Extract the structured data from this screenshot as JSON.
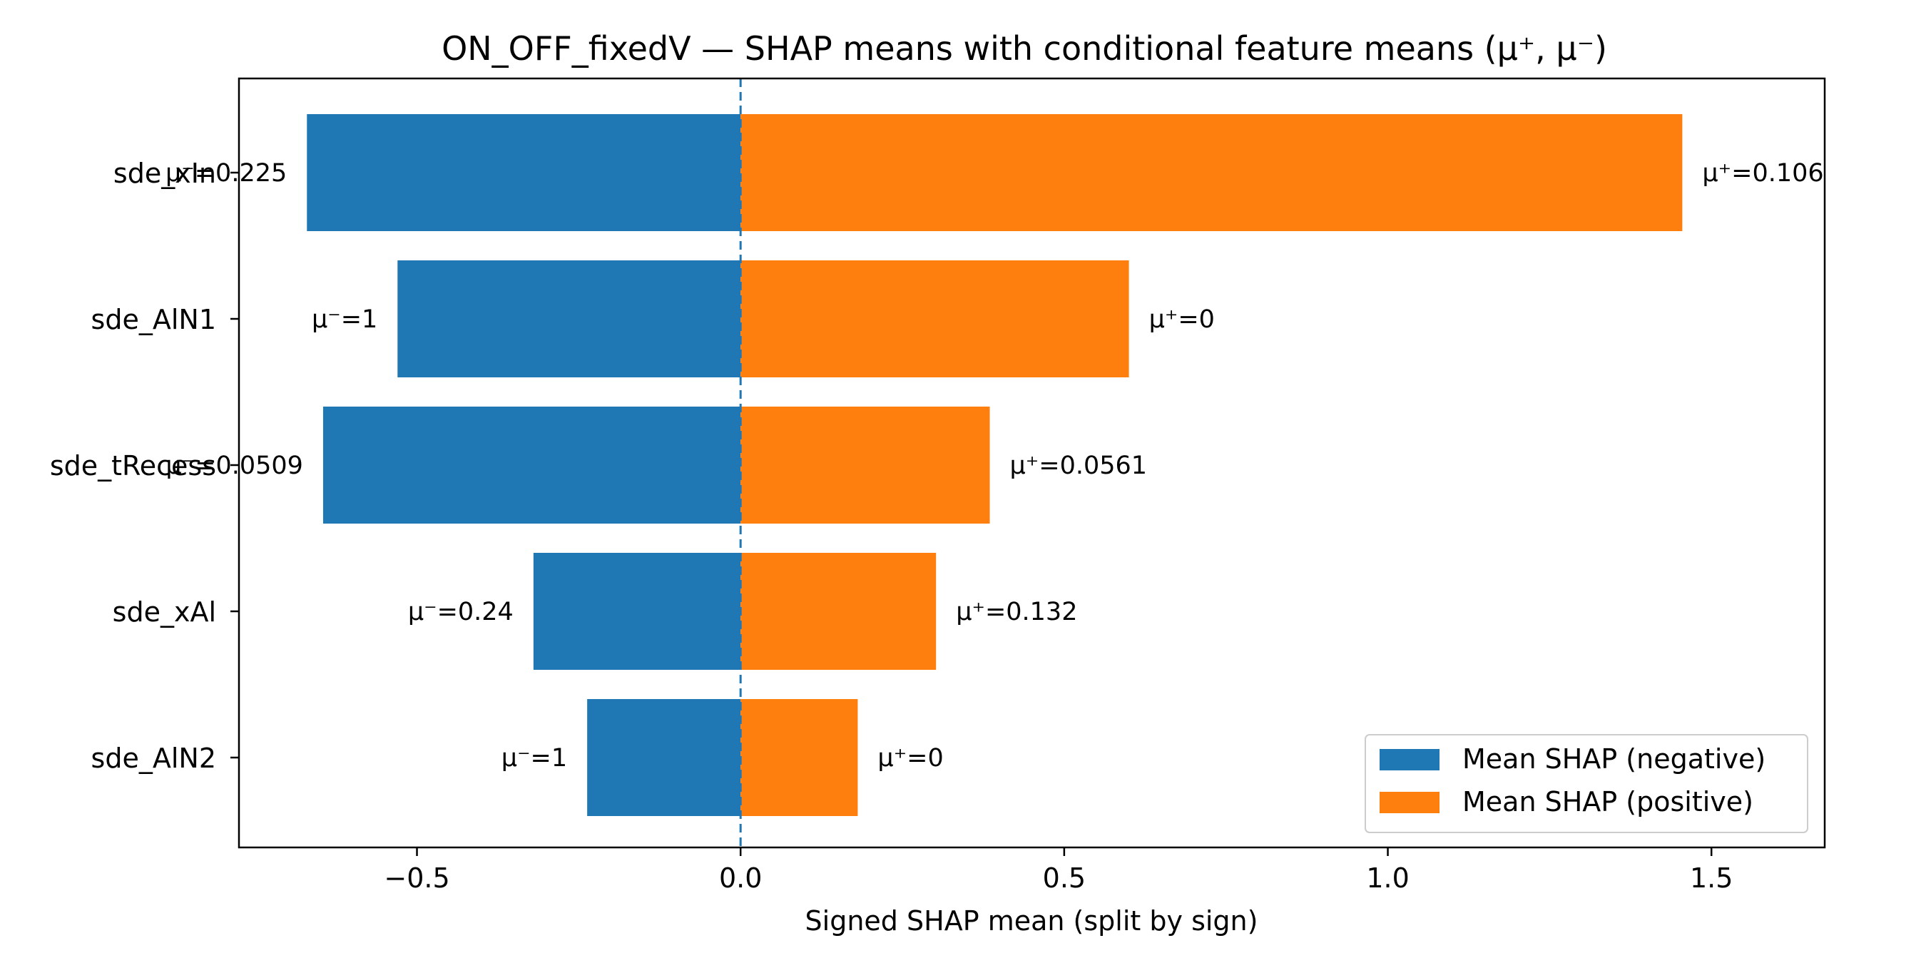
{
  "chart_data": {
    "type": "bar",
    "orientation": "horizontal",
    "title": "ON_OFF_fixedV — SHAP means with conditional feature means (μ⁺, μ⁻)",
    "xlabel": "Signed SHAP mean (split by sign)",
    "ylabel": "",
    "xlim": [
      -0.775,
      1.675
    ],
    "xticks": [
      -0.5,
      0.0,
      0.5,
      1.0,
      1.5
    ],
    "xtick_labels": [
      "−0.5",
      "0.0",
      "0.5",
      "1.0",
      "1.5"
    ],
    "categories": [
      "sde_xIn",
      "sde_AlN1",
      "sde_tRecess",
      "sde_xAl",
      "sde_AlN2"
    ],
    "series": [
      {
        "name": "Mean SHAP (negative)",
        "color": "#1f77b4",
        "values": [
          -0.67,
          -0.53,
          -0.645,
          -0.32,
          -0.237
        ],
        "labels": [
          "μ⁻=0.225",
          "μ⁻=1",
          "μ⁻=0.0509",
          "μ⁻=0.24",
          "μ⁻=1"
        ]
      },
      {
        "name": "Mean SHAP (positive)",
        "color": "#ff7f0e",
        "values": [
          1.455,
          0.6,
          0.385,
          0.302,
          0.181
        ],
        "labels": [
          "μ⁺=0.106",
          "μ⁺=0",
          "μ⁺=0.0561",
          "μ⁺=0.132",
          "μ⁺=0"
        ]
      }
    ],
    "zero_line": {
      "value": 0,
      "style": "dashed",
      "color": "#1f77b4"
    },
    "grid": false,
    "legend": {
      "placement": "lower-right"
    }
  }
}
